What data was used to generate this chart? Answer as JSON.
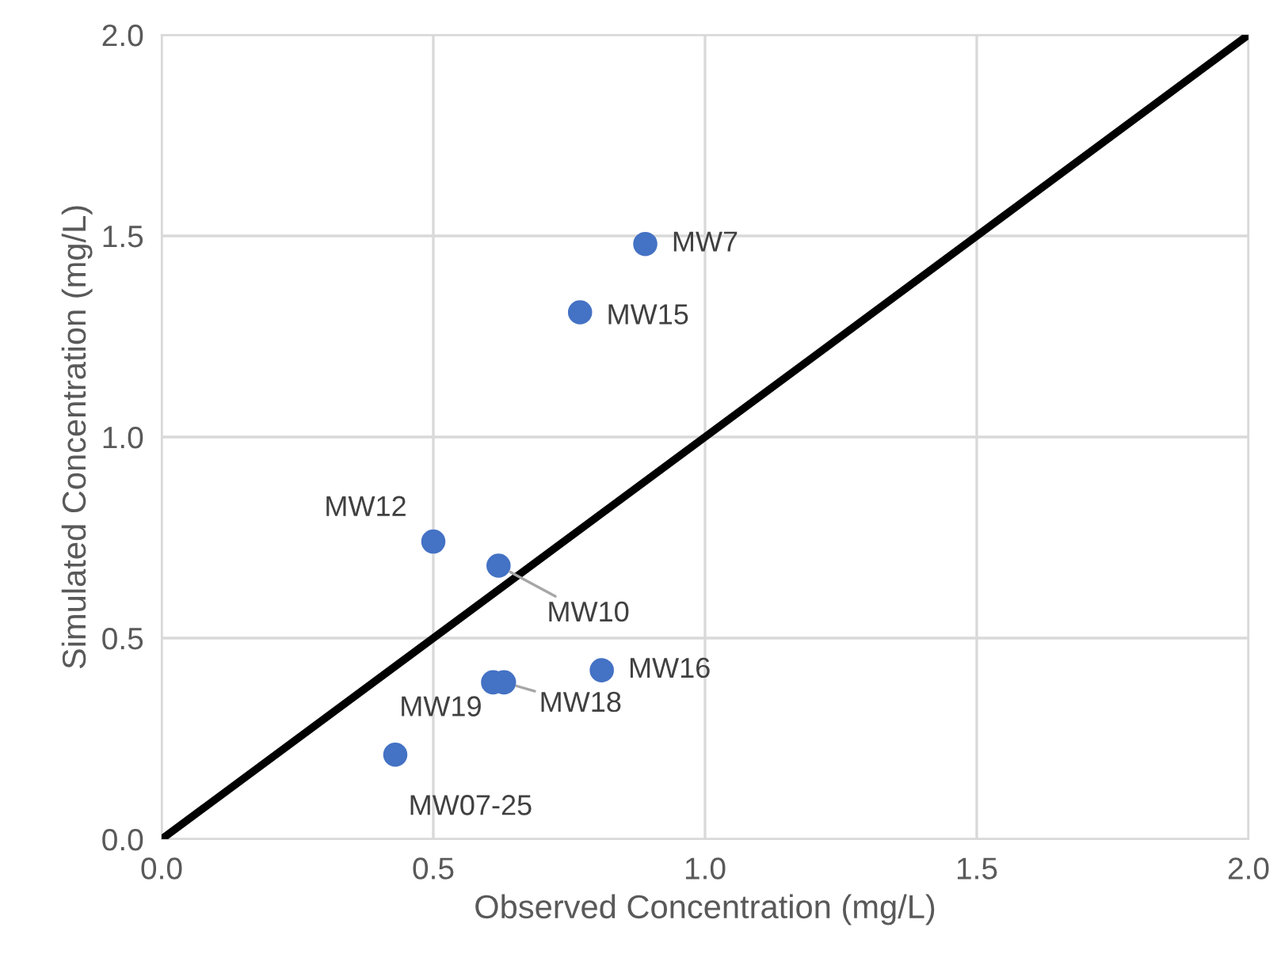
{
  "chart_data": {
    "type": "scatter",
    "xlabel": "Observed Concentration (mg/L)",
    "ylabel": "Simulated Concentration (mg/L)",
    "xlim": [
      0,
      2
    ],
    "ylim": [
      0,
      2
    ],
    "xticks": [
      {
        "value": 0,
        "label": "0.0"
      },
      {
        "value": 0.5,
        "label": "0.5"
      },
      {
        "value": 1,
        "label": "1.0"
      },
      {
        "value": 1.5,
        "label": "1.5"
      },
      {
        "value": 2,
        "label": "2.0"
      }
    ],
    "yticks": [
      {
        "value": 0,
        "label": "0.0"
      },
      {
        "value": 0.5,
        "label": "0.5"
      },
      {
        "value": 1,
        "label": "1.0"
      },
      {
        "value": 1.5,
        "label": "1.5"
      },
      {
        "value": 2,
        "label": "2.0"
      }
    ],
    "grid": true,
    "marker": "circle",
    "series": [
      {
        "color": "#4472c4",
        "x": [
          0.89,
          0.77,
          0.5,
          0.62,
          0.81,
          0.63,
          0.61,
          0.43
        ],
        "values": [
          1.48,
          1.31,
          0.74,
          0.68,
          0.42,
          0.39,
          0.39,
          0.21
        ]
      },
      {
        "type": "line",
        "color": "#000000",
        "marker": "none",
        "line_style": "solid",
        "x": [
          0,
          2
        ],
        "values": [
          0,
          2
        ]
      }
    ],
    "annotations": [
      {
        "text": "MW7",
        "x": 0.89,
        "y": 1.48
      },
      {
        "text": "MW15",
        "x": 0.77,
        "y": 1.31
      },
      {
        "text": "MW12",
        "x": 0.5,
        "y": 0.74
      },
      {
        "text": "MW10",
        "x": 0.62,
        "y": 0.68
      },
      {
        "text": "MW16",
        "x": 0.81,
        "y": 0.42
      },
      {
        "text": "MW18",
        "x": 0.63,
        "y": 0.39
      },
      {
        "text": "MW19",
        "x": 0.61,
        "y": 0.39
      },
      {
        "text": "MW07-25",
        "x": 0.43,
        "y": 0.21
      }
    ]
  }
}
